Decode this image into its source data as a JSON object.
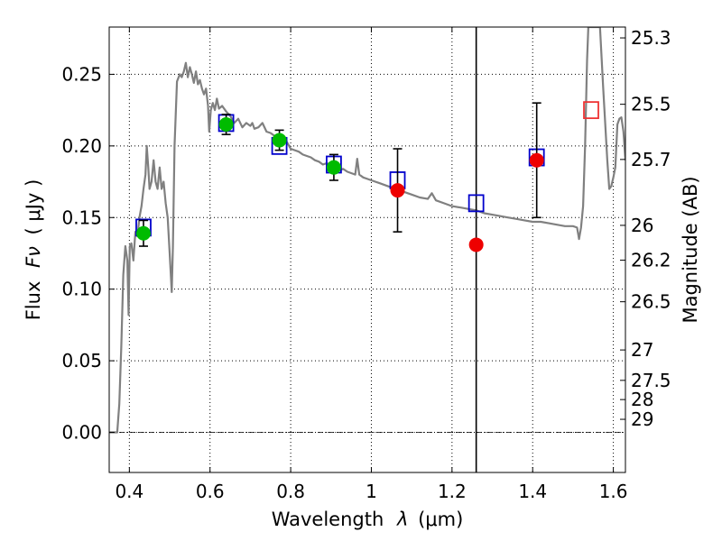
{
  "chart_data": {
    "type": "scatter",
    "xlabel_prefix": "Wavelength",
    "xlabel_symbol": "λ",
    "xlabel_unit": "(μm)",
    "ylabel_prefix": "Flux",
    "ylabel_symbol": "Fν",
    "ylabel_unit": "( μJy )",
    "y2label": "Magnitude (AB)",
    "xlim": [
      0.35,
      1.63
    ],
    "ylim": [
      -0.028,
      0.283
    ],
    "x_ticks": [
      {
        "v": 0.4,
        "label": "0.4"
      },
      {
        "v": 0.6,
        "label": "0.6"
      },
      {
        "v": 0.8,
        "label": "0.8"
      },
      {
        "v": 1.0,
        "label": "1"
      },
      {
        "v": 1.2,
        "label": "1.2"
      },
      {
        "v": 1.4,
        "label": "1.4"
      },
      {
        "v": 1.6,
        "label": "1.6"
      }
    ],
    "y_ticks": [
      {
        "v": 0.0,
        "label": "0.00"
      },
      {
        "v": 0.05,
        "label": "0.05"
      },
      {
        "v": 0.1,
        "label": "0.10"
      },
      {
        "v": 0.15,
        "label": "0.15"
      },
      {
        "v": 0.2,
        "label": "0.20"
      },
      {
        "v": 0.25,
        "label": "0.25"
      }
    ],
    "mag_ticks": [
      {
        "mag": 25.3,
        "label": "25.3"
      },
      {
        "mag": 25.5,
        "label": "25.5"
      },
      {
        "mag": 25.7,
        "label": "25.7"
      },
      {
        "mag": 26,
        "label": "26"
      },
      {
        "mag": 26.2,
        "label": "26.2"
      },
      {
        "mag": 26.5,
        "label": "26.5"
      },
      {
        "mag": 27,
        "label": "27"
      },
      {
        "mag": 27.5,
        "label": "27.5"
      },
      {
        "mag": 28,
        "label": "28"
      },
      {
        "mag": 29,
        "label": "29"
      }
    ],
    "vline_x": 1.26,
    "hline_y": 0.0,
    "colors": {
      "model": "#808080",
      "detected": "#00bb00",
      "upper": "#ee0000",
      "box": "#0000cc",
      "box_alt": "#ee3333",
      "errbar": "#000000"
    },
    "model_sed": [
      [
        0.35,
        0.0
      ],
      [
        0.36,
        0.0
      ],
      [
        0.37,
        0.0
      ],
      [
        0.375,
        0.02
      ],
      [
        0.38,
        0.06
      ],
      [
        0.385,
        0.11
      ],
      [
        0.39,
        0.13
      ],
      [
        0.395,
        0.12
      ],
      [
        0.398,
        0.082
      ],
      [
        0.401,
        0.13
      ],
      [
        0.405,
        0.132
      ],
      [
        0.41,
        0.12
      ],
      [
        0.415,
        0.14
      ],
      [
        0.42,
        0.137
      ],
      [
        0.425,
        0.15
      ],
      [
        0.43,
        0.158
      ],
      [
        0.435,
        0.17
      ],
      [
        0.44,
        0.18
      ],
      [
        0.443,
        0.2
      ],
      [
        0.447,
        0.185
      ],
      [
        0.45,
        0.17
      ],
      [
        0.455,
        0.175
      ],
      [
        0.46,
        0.19
      ],
      [
        0.465,
        0.175
      ],
      [
        0.47,
        0.17
      ],
      [
        0.475,
        0.185
      ],
      [
        0.48,
        0.17
      ],
      [
        0.485,
        0.175
      ],
      [
        0.49,
        0.16
      ],
      [
        0.495,
        0.15
      ],
      [
        0.5,
        0.125
      ],
      [
        0.505,
        0.098
      ],
      [
        0.508,
        0.13
      ],
      [
        0.512,
        0.2
      ],
      [
        0.518,
        0.245
      ],
      [
        0.525,
        0.25
      ],
      [
        0.53,
        0.248
      ],
      [
        0.535,
        0.252
      ],
      [
        0.54,
        0.258
      ],
      [
        0.545,
        0.248
      ],
      [
        0.55,
        0.255
      ],
      [
        0.555,
        0.25
      ],
      [
        0.56,
        0.244
      ],
      [
        0.565,
        0.252
      ],
      [
        0.57,
        0.243
      ],
      [
        0.575,
        0.246
      ],
      [
        0.58,
        0.24
      ],
      [
        0.585,
        0.236
      ],
      [
        0.59,
        0.24
      ],
      [
        0.595,
        0.228
      ],
      [
        0.598,
        0.21
      ],
      [
        0.602,
        0.225
      ],
      [
        0.607,
        0.23
      ],
      [
        0.612,
        0.225
      ],
      [
        0.617,
        0.233
      ],
      [
        0.622,
        0.226
      ],
      [
        0.63,
        0.228
      ],
      [
        0.64,
        0.224
      ],
      [
        0.65,
        0.221
      ],
      [
        0.66,
        0.216
      ],
      [
        0.67,
        0.219
      ],
      [
        0.68,
        0.213
      ],
      [
        0.69,
        0.216
      ],
      [
        0.7,
        0.214
      ],
      [
        0.705,
        0.216
      ],
      [
        0.71,
        0.212
      ],
      [
        0.72,
        0.213
      ],
      [
        0.73,
        0.216
      ],
      [
        0.74,
        0.21
      ],
      [
        0.75,
        0.209
      ],
      [
        0.76,
        0.207
      ],
      [
        0.77,
        0.205
      ],
      [
        0.78,
        0.204
      ],
      [
        0.79,
        0.203
      ],
      [
        0.8,
        0.198
      ],
      [
        0.81,
        0.197
      ],
      [
        0.82,
        0.196
      ],
      [
        0.83,
        0.194
      ],
      [
        0.84,
        0.193
      ],
      [
        0.85,
        0.192
      ],
      [
        0.86,
        0.19
      ],
      [
        0.87,
        0.189
      ],
      [
        0.88,
        0.187
      ],
      [
        0.89,
        0.188
      ],
      [
        0.9,
        0.186
      ],
      [
        0.91,
        0.185
      ],
      [
        0.92,
        0.183
      ],
      [
        0.93,
        0.184
      ],
      [
        0.94,
        0.182
      ],
      [
        0.95,
        0.181
      ],
      [
        0.96,
        0.18
      ],
      [
        0.965,
        0.191
      ],
      [
        0.97,
        0.18
      ],
      [
        0.98,
        0.178
      ],
      [
        0.99,
        0.177
      ],
      [
        1.0,
        0.176
      ],
      [
        1.02,
        0.174
      ],
      [
        1.04,
        0.172
      ],
      [
        1.06,
        0.17
      ],
      [
        1.08,
        0.168
      ],
      [
        1.1,
        0.166
      ],
      [
        1.12,
        0.164
      ],
      [
        1.14,
        0.163
      ],
      [
        1.15,
        0.167
      ],
      [
        1.16,
        0.162
      ],
      [
        1.18,
        0.16
      ],
      [
        1.2,
        0.158
      ],
      [
        1.22,
        0.157
      ],
      [
        1.24,
        0.156
      ],
      [
        1.26,
        0.155
      ],
      [
        1.28,
        0.153
      ],
      [
        1.3,
        0.152
      ],
      [
        1.32,
        0.151
      ],
      [
        1.34,
        0.15
      ],
      [
        1.36,
        0.149
      ],
      [
        1.38,
        0.148
      ],
      [
        1.4,
        0.147
      ],
      [
        1.42,
        0.147
      ],
      [
        1.44,
        0.146
      ],
      [
        1.46,
        0.145
      ],
      [
        1.48,
        0.144
      ],
      [
        1.5,
        0.144
      ],
      [
        1.51,
        0.143
      ],
      [
        1.515,
        0.135
      ],
      [
        1.52,
        0.143
      ],
      [
        1.525,
        0.158
      ],
      [
        1.53,
        0.2
      ],
      [
        1.535,
        0.26
      ],
      [
        1.538,
        0.283
      ],
      [
        1.545,
        0.283
      ],
      [
        1.55,
        0.283
      ],
      [
        1.56,
        0.283
      ],
      [
        1.567,
        0.283
      ],
      [
        1.575,
        0.24
      ],
      [
        1.585,
        0.19
      ],
      [
        1.59,
        0.17
      ],
      [
        1.595,
        0.172
      ],
      [
        1.6,
        0.178
      ],
      [
        1.605,
        0.185
      ],
      [
        1.61,
        0.215
      ],
      [
        1.615,
        0.219
      ],
      [
        1.62,
        0.22
      ],
      [
        1.625,
        0.21
      ],
      [
        1.63,
        0.19
      ]
    ],
    "model_boxes": [
      {
        "x": 0.435,
        "y": 0.143,
        "color": "box"
      },
      {
        "x": 0.64,
        "y": 0.216,
        "color": "box"
      },
      {
        "x": 0.772,
        "y": 0.2,
        "color": "box"
      },
      {
        "x": 0.907,
        "y": 0.187,
        "color": "box"
      },
      {
        "x": 1.065,
        "y": 0.176,
        "color": "box"
      },
      {
        "x": 1.26,
        "y": 0.16,
        "color": "box"
      },
      {
        "x": 1.41,
        "y": 0.192,
        "color": "box"
      },
      {
        "x": 1.545,
        "y": 0.225,
        "color": "box_alt"
      }
    ],
    "observed": [
      {
        "x": 0.435,
        "y": 0.139,
        "err": 0.009,
        "color": "detected"
      },
      {
        "x": 0.64,
        "y": 0.215,
        "err": 0.007,
        "color": "detected"
      },
      {
        "x": 0.772,
        "y": 0.204,
        "err": 0.007,
        "color": "detected"
      },
      {
        "x": 0.907,
        "y": 0.185,
        "err": 0.009,
        "color": "detected"
      },
      {
        "x": 1.065,
        "y": 0.169,
        "err": 0.029,
        "color": "upper"
      },
      {
        "x": 1.26,
        "y": 0.131,
        "err": 0,
        "color": "upper"
      },
      {
        "x": 1.41,
        "y": 0.19,
        "err": 0.04,
        "color": "upper"
      }
    ]
  }
}
